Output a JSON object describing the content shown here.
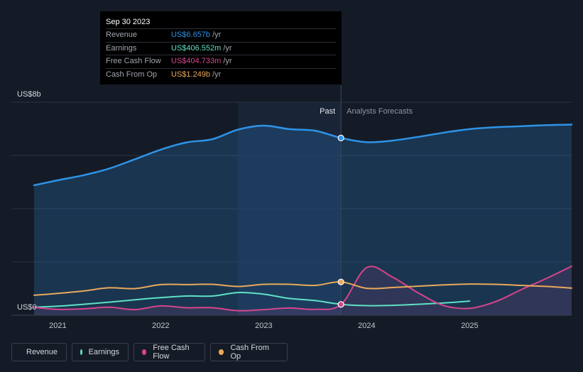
{
  "tooltip": {
    "date": "Sep 30 2023",
    "rows": [
      {
        "label": "Revenue",
        "value": "US$6.657b",
        "unit": "/yr",
        "color": "#2e93e6"
      },
      {
        "label": "Earnings",
        "value": "US$406.552m",
        "unit": "/yr",
        "color": "#5ee1c5"
      },
      {
        "label": "Free Cash Flow",
        "value": "US$404.733m",
        "unit": "/yr",
        "color": "#d6458c"
      },
      {
        "label": "Cash From Op",
        "value": "US$1.249b",
        "unit": "/yr",
        "color": "#e8a95b"
      }
    ]
  },
  "legend": [
    {
      "label": "Revenue",
      "color": "#2e93e6"
    },
    {
      "label": "Earnings",
      "color": "#5ee1c5"
    },
    {
      "label": "Free Cash Flow",
      "color": "#d6458c"
    },
    {
      "label": "Cash From Op",
      "color": "#e8a95b"
    }
  ],
  "chart_data": {
    "type": "line",
    "ylabel_top": "US$8b",
    "ylabel_bottom": "US$0",
    "ylim": [
      0,
      8
    ],
    "y_unit": "US$b",
    "xlim": [
      2020.77,
      2025.99
    ],
    "x_ticks": [
      {
        "label": "2021",
        "value": 2021
      },
      {
        "label": "2022",
        "value": 2022
      },
      {
        "label": "2023",
        "value": 2023
      },
      {
        "label": "2024",
        "value": 2024
      },
      {
        "label": "2025",
        "value": 2025
      }
    ],
    "divider_x": 2023.75,
    "highlight_start_x": 2022.75,
    "past_label": "Past",
    "forecast_label": "Analysts Forecasts",
    "series": [
      {
        "name": "Revenue",
        "color": "#2e93e6",
        "area": true,
        "x": [
          2020.77,
          2021.0,
          2021.25,
          2021.5,
          2021.75,
          2022.0,
          2022.25,
          2022.5,
          2022.75,
          2023.0,
          2023.25,
          2023.5,
          2023.75,
          2024.0,
          2024.25,
          2024.5,
          2024.75,
          2025.0,
          2025.25,
          2025.5,
          2025.75,
          2025.99
        ],
        "y": [
          4.88,
          5.07,
          5.26,
          5.51,
          5.86,
          6.22,
          6.49,
          6.61,
          6.97,
          7.12,
          6.99,
          6.93,
          6.66,
          6.5,
          6.56,
          6.7,
          6.86,
          6.99,
          7.06,
          7.1,
          7.14,
          7.16
        ]
      },
      {
        "name": "Earnings",
        "color": "#5ee1c5",
        "area": false,
        "x": [
          2020.77,
          2021.0,
          2021.25,
          2021.5,
          2021.75,
          2022.0,
          2022.25,
          2022.5,
          2022.75,
          2023.0,
          2023.25,
          2023.5,
          2023.75,
          2024.0,
          2024.25,
          2024.5,
          2024.75,
          2025.0
        ],
        "y": [
          0.3,
          0.34,
          0.41,
          0.49,
          0.58,
          0.66,
          0.72,
          0.72,
          0.85,
          0.79,
          0.63,
          0.55,
          0.41,
          0.36,
          0.37,
          0.41,
          0.46,
          0.53
        ]
      },
      {
        "name": "Free Cash Flow",
        "color": "#d6458c",
        "area": true,
        "x": [
          2020.77,
          2021.0,
          2021.25,
          2021.5,
          2021.75,
          2022.0,
          2022.25,
          2022.5,
          2022.75,
          2023.0,
          2023.25,
          2023.5,
          2023.75,
          2024.0,
          2024.25,
          2024.5,
          2024.75,
          2025.0,
          2025.25,
          2025.5,
          2025.75,
          2025.99
        ],
        "y": [
          0.3,
          0.22,
          0.24,
          0.3,
          0.21,
          0.35,
          0.28,
          0.28,
          0.17,
          0.21,
          0.27,
          0.22,
          0.4,
          1.79,
          1.43,
          0.84,
          0.36,
          0.26,
          0.51,
          0.96,
          1.39,
          1.84
        ]
      },
      {
        "name": "Cash From Op",
        "color": "#e8a95b",
        "area": false,
        "x": [
          2020.77,
          2021.0,
          2021.25,
          2021.5,
          2021.75,
          2022.0,
          2022.25,
          2022.5,
          2022.75,
          2023.0,
          2023.25,
          2023.5,
          2023.75,
          2024.0,
          2024.25,
          2024.5,
          2024.75,
          2025.0,
          2025.25,
          2025.5,
          2025.75,
          2025.99
        ],
        "y": [
          0.75,
          0.82,
          0.91,
          1.03,
          1.0,
          1.15,
          1.15,
          1.16,
          1.08,
          1.16,
          1.16,
          1.12,
          1.25,
          1.01,
          1.04,
          1.09,
          1.14,
          1.17,
          1.16,
          1.12,
          1.08,
          1.02
        ]
      }
    ],
    "markers": [
      {
        "series": "Revenue",
        "x": 2023.75,
        "y": 6.657
      },
      {
        "series": "Cash From Op",
        "x": 2023.75,
        "y": 1.249
      },
      {
        "series": "Free Cash Flow",
        "x": 2023.75,
        "y": 0.405
      }
    ]
  }
}
